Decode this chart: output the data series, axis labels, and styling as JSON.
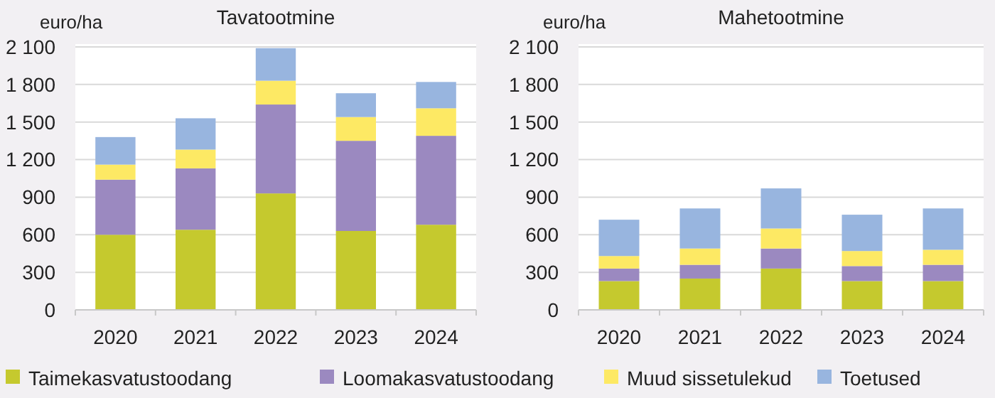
{
  "chart_data": [
    {
      "type": "bar",
      "title": "Tavatootmine",
      "ylabel": "euro/ha",
      "categories": [
        "2020",
        "2021",
        "2022",
        "2023",
        "2024"
      ],
      "stacked": true,
      "ylim": [
        0,
        2100
      ],
      "yticks": [
        0,
        300,
        600,
        900,
        {
          "value": 1200,
          "label": "1 200"
        },
        {
          "value": 1500,
          "label": "1 500"
        },
        {
          "value": 1800,
          "label": "1 800"
        },
        {
          "value": 2100,
          "label": "2 100"
        }
      ],
      "grid": "y",
      "legend": "bottom",
      "series": [
        {
          "name": "Taimekasvatustoodang",
          "color": "#c5c92e",
          "values": [
            600,
            640,
            930,
            630,
            680
          ]
        },
        {
          "name": "Loomakasvatustoodang",
          "color": "#9b89c0",
          "values": [
            440,
            490,
            710,
            720,
            710
          ]
        },
        {
          "name": "Muud sissetulekud",
          "color": "#fde964",
          "values": [
            120,
            150,
            190,
            190,
            220
          ]
        },
        {
          "name": "Toetused",
          "color": "#98b5df",
          "values": [
            220,
            250,
            260,
            190,
            210
          ]
        }
      ]
    },
    {
      "type": "bar",
      "title": "Mahetootmine",
      "ylabel": "euro/ha",
      "categories": [
        "2020",
        "2021",
        "2022",
        "2023",
        "2024"
      ],
      "stacked": true,
      "ylim": [
        0,
        2100
      ],
      "yticks": [
        0,
        300,
        600,
        900,
        {
          "value": 1200,
          "label": "1 200"
        },
        {
          "value": 1500,
          "label": "1 500"
        },
        {
          "value": 1800,
          "label": "1 800"
        },
        {
          "value": 2100,
          "label": "2 100"
        }
      ],
      "grid": "y",
      "series": [
        {
          "color": "#c5c92e",
          "values": [
            230,
            250,
            330,
            230,
            230
          ]
        },
        {
          "color": "#9b89c0",
          "values": [
            100,
            110,
            160,
            120,
            130
          ]
        },
        {
          "color": "#fde964",
          "values": [
            100,
            130,
            160,
            120,
            120
          ]
        },
        {
          "color": "#98b5df",
          "values": [
            290,
            320,
            320,
            290,
            330
          ]
        }
      ]
    }
  ]
}
